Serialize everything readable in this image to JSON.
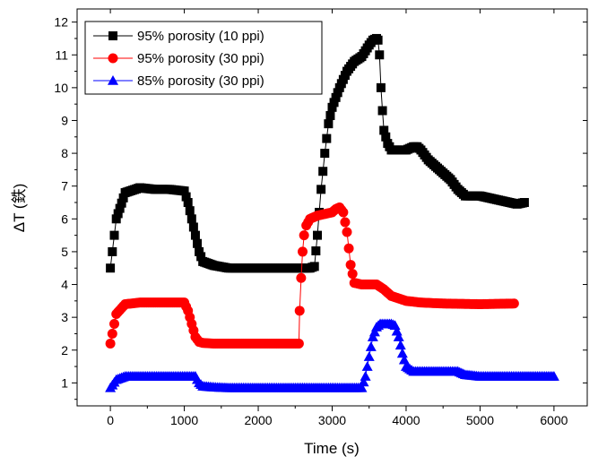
{
  "chart_data": {
    "type": "scatter",
    "xlabel": "Time (s)",
    "ylabel": "ΔT (鉄)",
    "xlim": [
      -450,
      6450
    ],
    "ylim": [
      0.3,
      12.4
    ],
    "x_ticks": [
      0,
      1000,
      2000,
      3000,
      4000,
      5000,
      6000
    ],
    "y_ticks": [
      1,
      2,
      3,
      4,
      5,
      6,
      7,
      8,
      9,
      10,
      11,
      12
    ],
    "grid": false,
    "legend_position": "top-left",
    "series": [
      {
        "name": "95% porosity (10 ppi)",
        "color": "#000000",
        "marker": "square",
        "x": [
          0,
          80,
          200,
          400,
          600,
          800,
          1000,
          1050,
          1100,
          1150,
          1200,
          1250,
          1400,
          1600,
          2000,
          2400,
          2700,
          2760,
          2800,
          2850,
          2900,
          2950,
          3000,
          3100,
          3200,
          3300,
          3400,
          3500,
          3550,
          3600,
          3620,
          3640,
          3660,
          3680,
          3700,
          3750,
          3800,
          3900,
          4000,
          4100,
          4150,
          4200,
          4300,
          4400,
          4500,
          4600,
          4700,
          4800,
          5000,
          5200,
          5400,
          5500,
          5600
        ],
        "y": [
          4.5,
          6.0,
          6.8,
          6.95,
          6.9,
          6.9,
          6.85,
          6.5,
          6.0,
          5.5,
          5.0,
          4.7,
          4.58,
          4.5,
          4.5,
          4.5,
          4.5,
          4.55,
          5.5,
          6.9,
          8.0,
          8.9,
          9.4,
          10.0,
          10.5,
          10.8,
          10.95,
          11.3,
          11.45,
          11.5,
          11.45,
          11.0,
          10.0,
          9.3,
          8.7,
          8.3,
          8.1,
          8.1,
          8.1,
          8.2,
          8.2,
          8.1,
          7.8,
          7.6,
          7.4,
          7.2,
          6.9,
          6.7,
          6.7,
          6.6,
          6.5,
          6.45,
          6.5
        ]
      },
      {
        "name": "95% porosity (30 ppi)",
        "color": "#ff0000",
        "marker": "circle",
        "x": [
          0,
          80,
          200,
          400,
          600,
          800,
          1000,
          1050,
          1100,
          1150,
          1200,
          1250,
          1400,
          1600,
          2000,
          2400,
          2550,
          2560,
          2580,
          2600,
          2620,
          2650,
          2700,
          2800,
          2900,
          3000,
          3050,
          3100,
          3150,
          3200,
          3250,
          3300,
          3400,
          3500,
          3600,
          3700,
          3800,
          4000,
          4200,
          4500,
          5000,
          5460
        ],
        "y": [
          2.2,
          3.1,
          3.4,
          3.45,
          3.45,
          3.45,
          3.45,
          3.2,
          2.8,
          2.4,
          2.25,
          2.22,
          2.2,
          2.2,
          2.2,
          2.2,
          2.2,
          3.2,
          4.2,
          5.0,
          5.5,
          5.8,
          6.0,
          6.1,
          6.15,
          6.2,
          6.3,
          6.35,
          6.2,
          5.6,
          4.6,
          4.05,
          4.0,
          4.0,
          4.0,
          3.85,
          3.65,
          3.5,
          3.45,
          3.42,
          3.4,
          3.42
        ]
      },
      {
        "name": "85% porosity (30 ppi)",
        "color": "#0000ff",
        "marker": "triangle",
        "x": [
          0,
          80,
          200,
          400,
          600,
          800,
          1000,
          1150,
          1200,
          1250,
          1400,
          1600,
          2000,
          2400,
          2800,
          3200,
          3400,
          3450,
          3500,
          3550,
          3600,
          3650,
          3700,
          3800,
          3850,
          3900,
          3950,
          4000,
          4100,
          4300,
          4500,
          4700,
          4800,
          5000,
          5500,
          6000
        ],
        "y": [
          0.85,
          1.1,
          1.2,
          1.2,
          1.2,
          1.2,
          1.2,
          1.2,
          1.0,
          0.9,
          0.87,
          0.85,
          0.85,
          0.85,
          0.85,
          0.85,
          0.85,
          1.2,
          1.8,
          2.4,
          2.7,
          2.8,
          2.8,
          2.8,
          2.75,
          2.4,
          1.9,
          1.5,
          1.35,
          1.35,
          1.35,
          1.35,
          1.25,
          1.2,
          1.2,
          1.2
        ]
      }
    ]
  }
}
